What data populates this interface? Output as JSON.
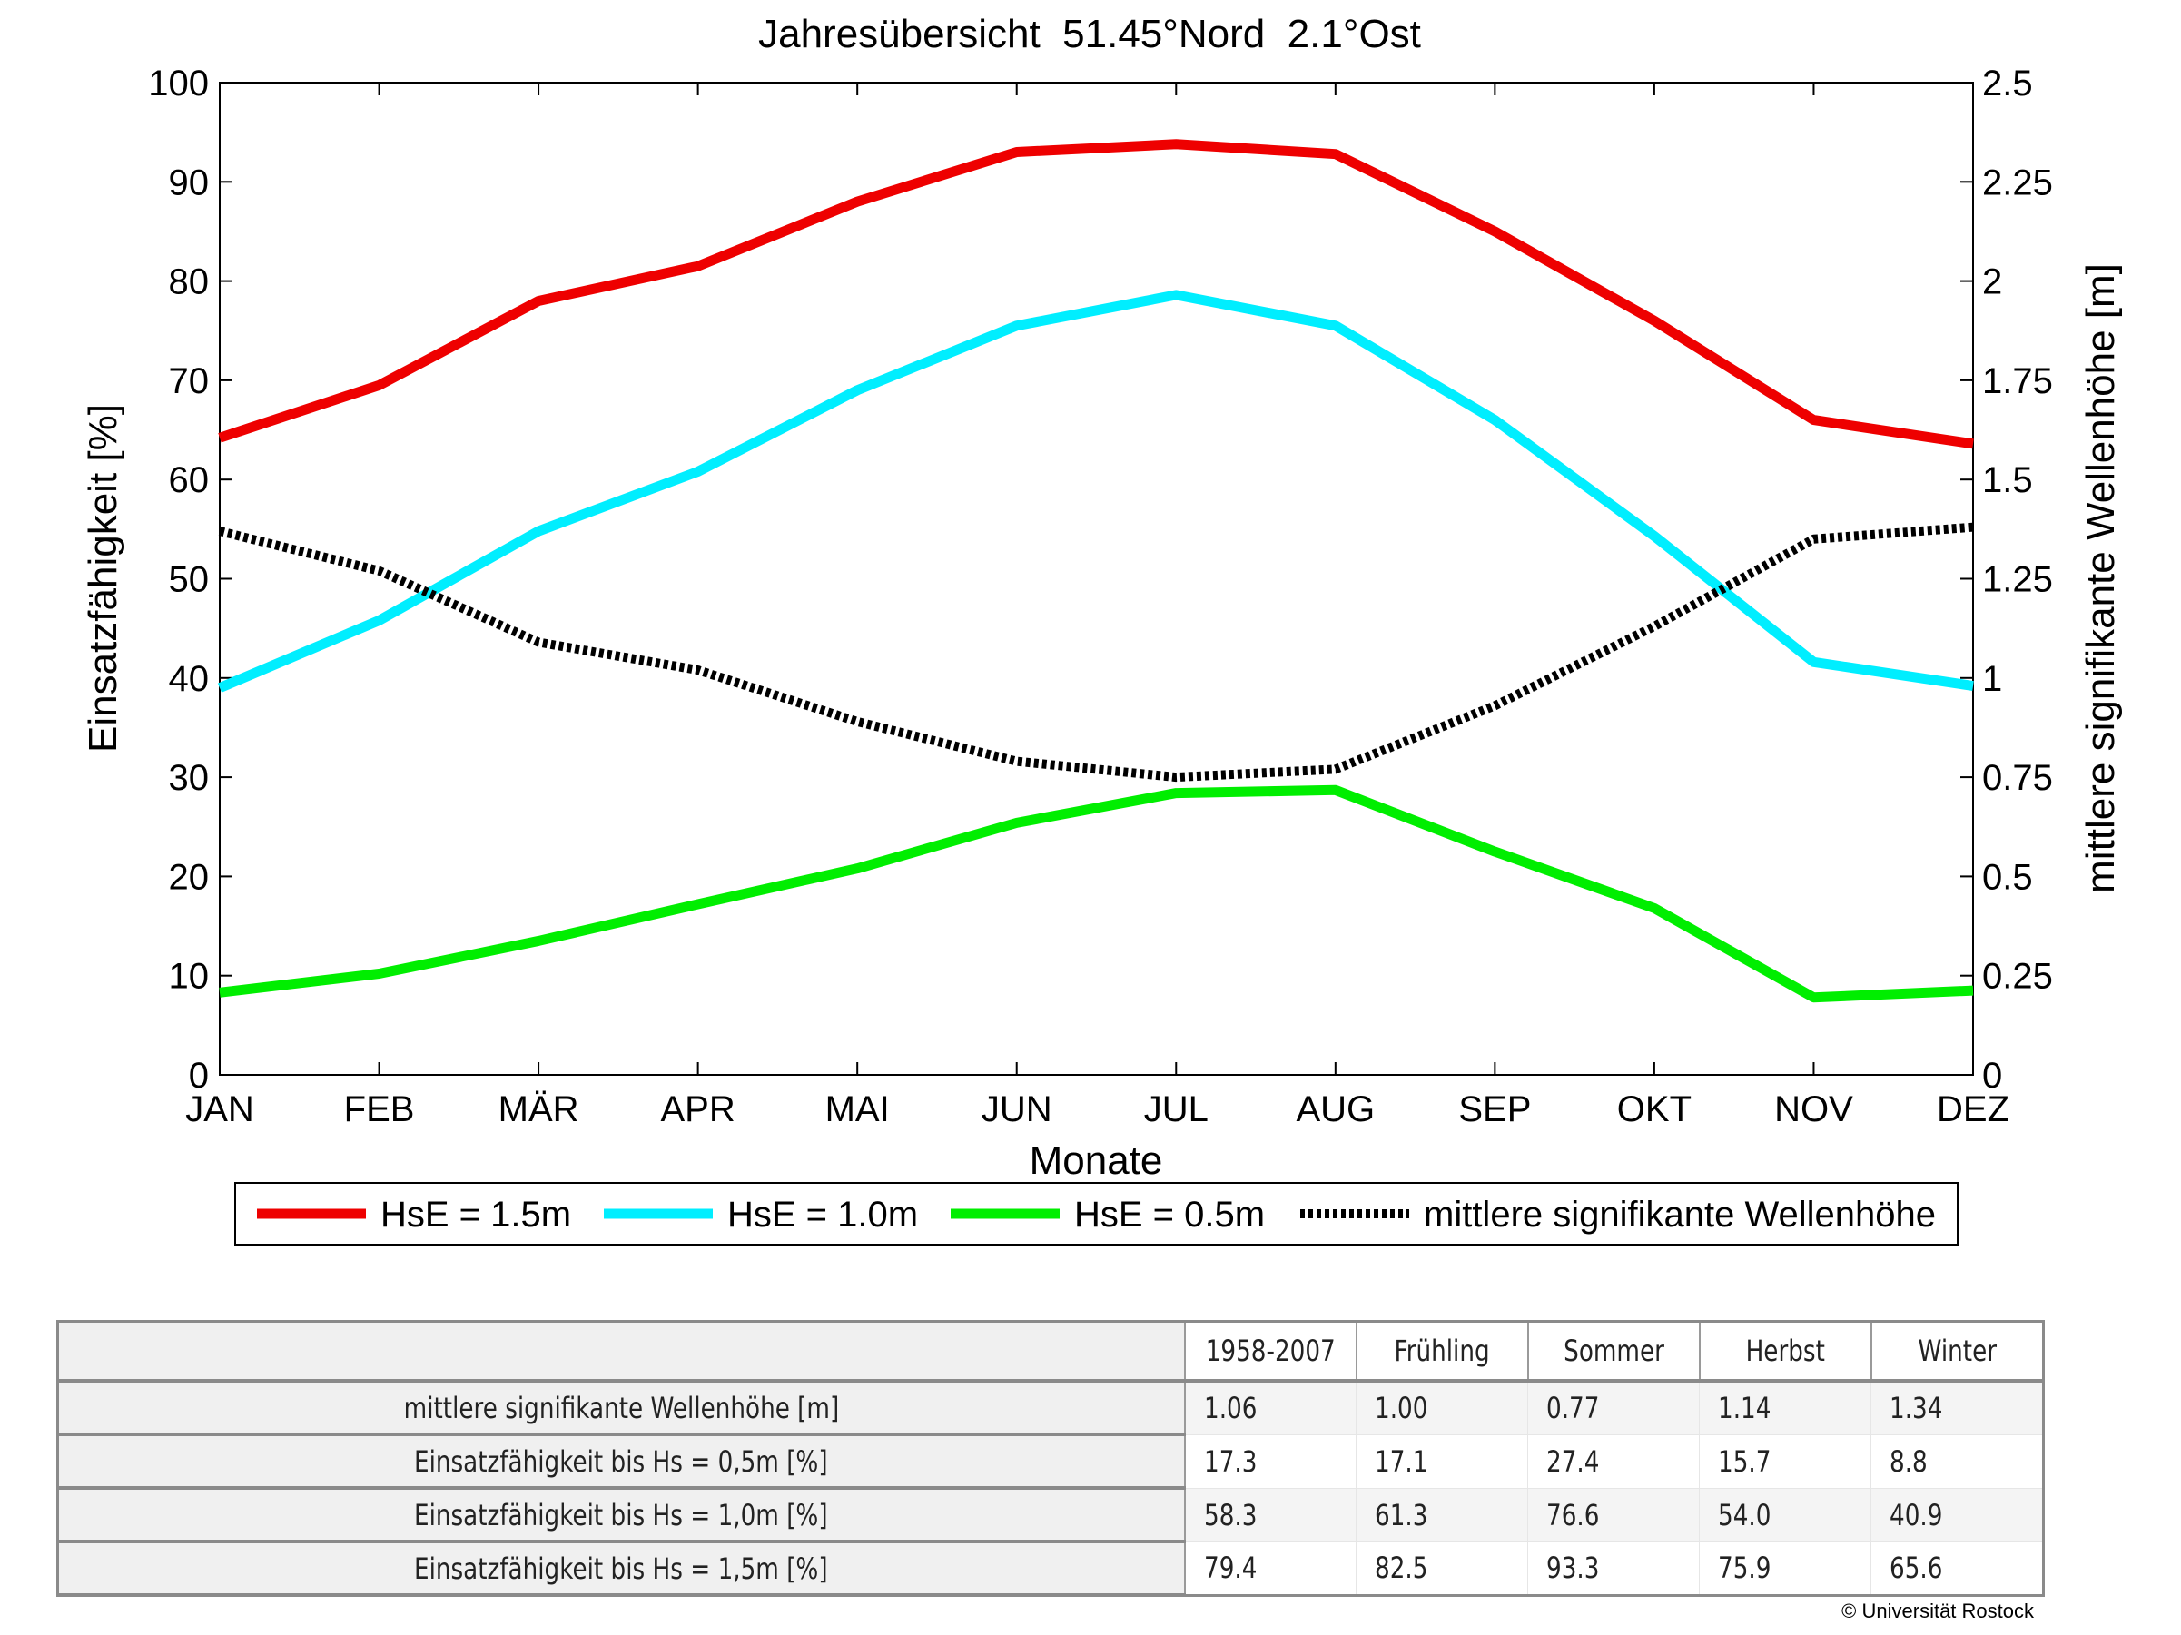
{
  "chart_data": {
    "type": "line",
    "title": "Jahresübersicht  51.45°Nord  2.1°Ost",
    "xlabel": "Monate",
    "ylabel": "Einsatzfähigkeit [%]",
    "ylabel_right": "mittlere signifikante Wellenhöhe [m]",
    "categories": [
      "JAN",
      "FEB",
      "MÄR",
      "APR",
      "MAI",
      "JUN",
      "JUL",
      "AUG",
      "SEP",
      "OKT",
      "NOV",
      "DEZ"
    ],
    "ylim": [
      0,
      100
    ],
    "ylim_right": [
      0,
      2.5
    ],
    "yticks": [
      "0",
      "10",
      "20",
      "30",
      "40",
      "50",
      "60",
      "70",
      "80",
      "90",
      "100"
    ],
    "yticks_right": [
      "0",
      "0.25",
      "0.5",
      "0.75",
      "1",
      "1.25",
      "1.5",
      "1.75",
      "2",
      "2.25",
      "2.5"
    ],
    "grid": false,
    "legend_position": "bottom",
    "series": [
      {
        "name": "HsE = 1.5m",
        "axis": "left",
        "color": "#ee0000",
        "dash": false,
        "values": [
          64.2,
          69.5,
          78.0,
          81.5,
          88.0,
          93.0,
          93.8,
          92.8,
          85.0,
          76.0,
          66.0,
          63.6
        ]
      },
      {
        "name": "HsE = 1.0m",
        "axis": "left",
        "color": "#00eeff",
        "dash": false,
        "values": [
          39.0,
          45.8,
          54.8,
          60.8,
          69.0,
          75.5,
          78.6,
          75.5,
          66.0,
          54.3,
          41.6,
          39.2
        ]
      },
      {
        "name": "HsE = 0.5m",
        "axis": "left",
        "color": "#00ee00",
        "dash": false,
        "values": [
          8.3,
          10.2,
          13.5,
          17.2,
          20.8,
          25.4,
          28.4,
          28.7,
          22.5,
          16.8,
          7.8,
          8.5
        ]
      },
      {
        "name": "mittlere signifikante Wellenhöhe",
        "axis": "right",
        "color": "#000000",
        "dash": true,
        "values": [
          1.37,
          1.27,
          1.09,
          1.02,
          0.89,
          0.79,
          0.75,
          0.77,
          0.93,
          1.13,
          1.35,
          1.38
        ]
      }
    ]
  },
  "table": {
    "headers": [
      "",
      "1958-2007",
      "Frühling",
      "Sommer",
      "Herbst",
      "Winter"
    ],
    "rows": [
      {
        "label": "mittlere signifikante Wellenhöhe [m]",
        "values": [
          "1.06",
          "1.00",
          "0.77",
          "1.14",
          "1.34"
        ]
      },
      {
        "label": "Einsatzfähigkeit bis Hs = 0,5m [%]",
        "values": [
          "17.3",
          "17.1",
          "27.4",
          "15.7",
          " 8.8"
        ]
      },
      {
        "label": "Einsatzfähigkeit bis Hs = 1,0m [%]",
        "values": [
          "58.3",
          "61.3",
          "76.6",
          "54.0",
          "40.9"
        ]
      },
      {
        "label": "Einsatzfähigkeit bis Hs = 1,5m [%]",
        "values": [
          "79.4",
          "82.5",
          "93.3",
          "75.9",
          "65.6"
        ]
      }
    ]
  },
  "copyright": "© Universität Rostock"
}
